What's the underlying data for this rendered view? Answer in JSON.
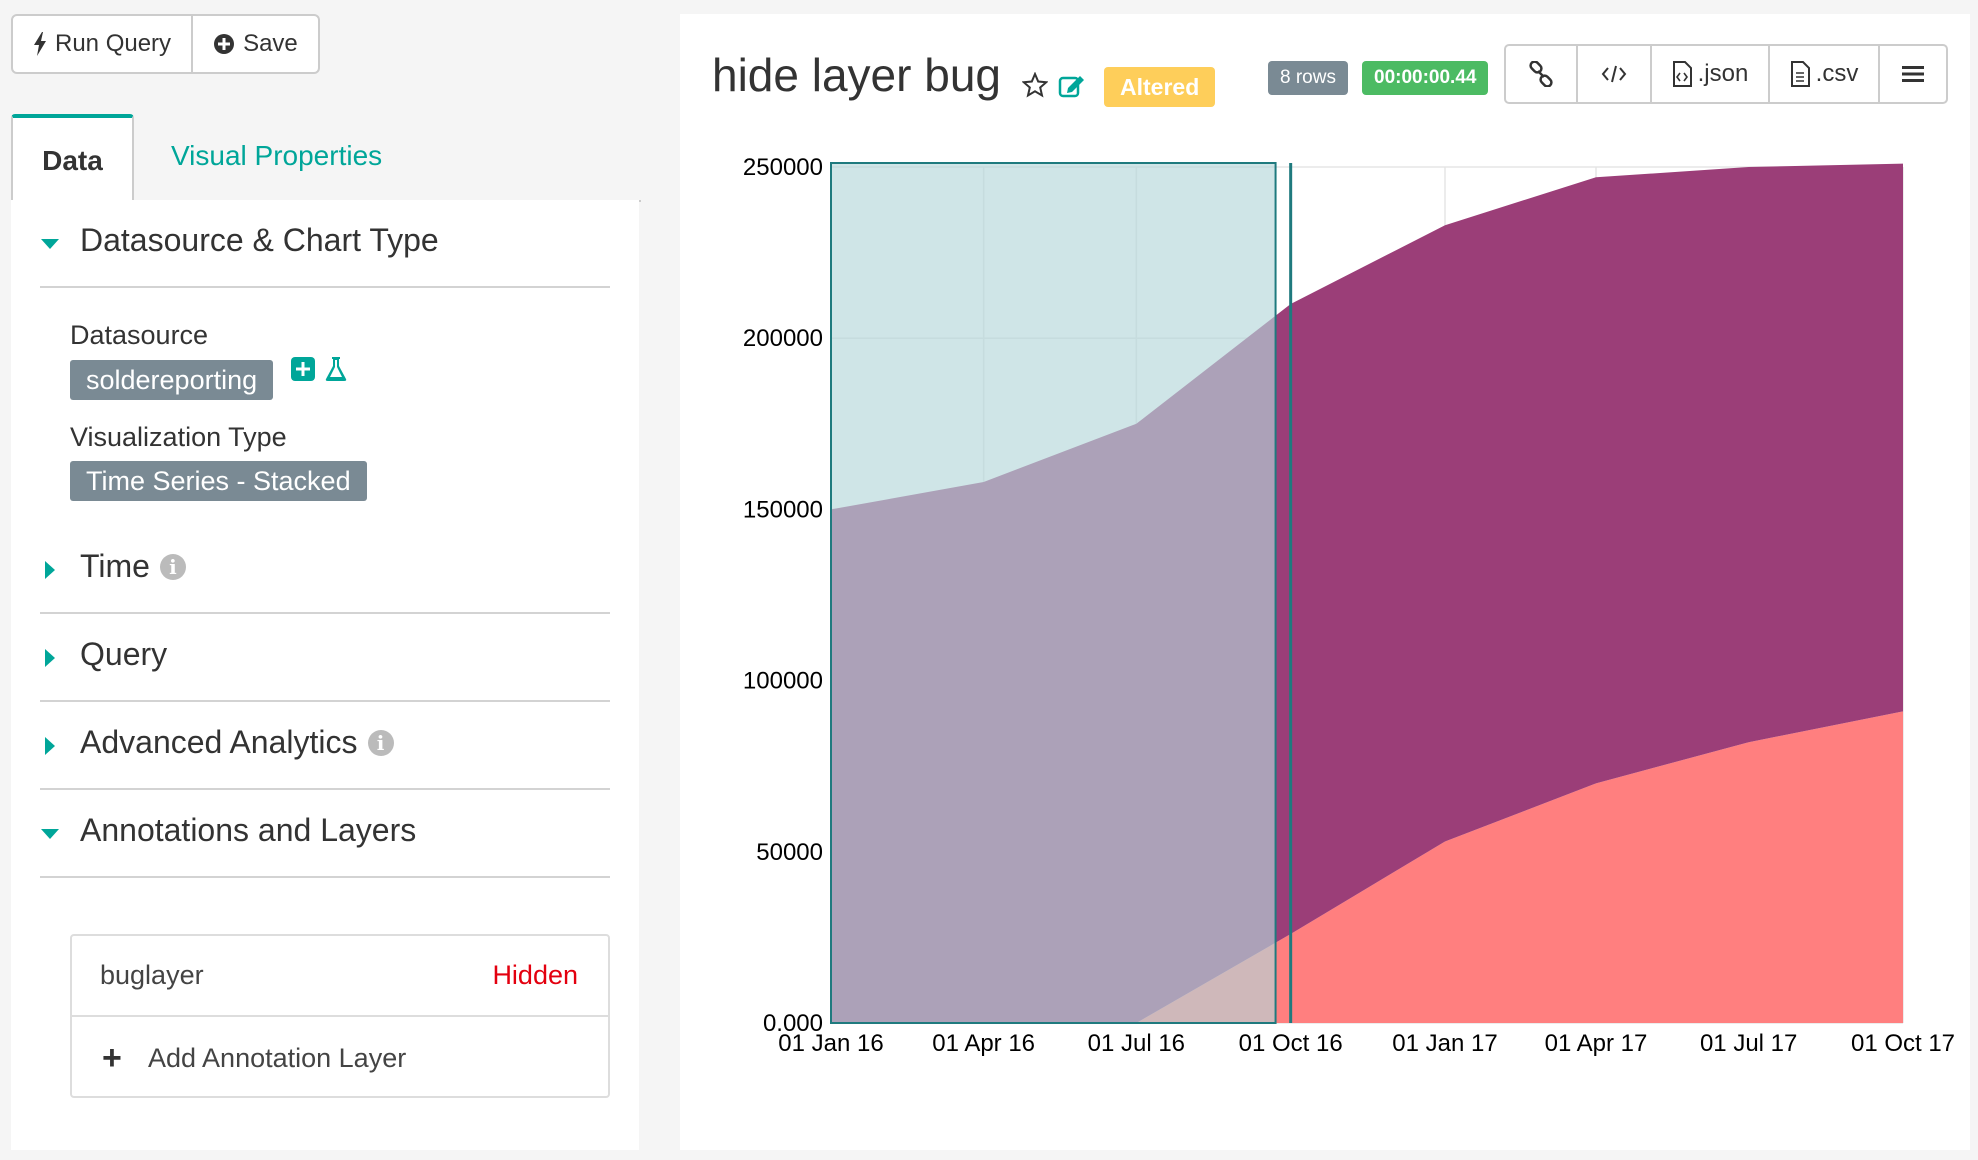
{
  "toolbar": {
    "run_query": "Run Query",
    "save": "Save"
  },
  "tabs": {
    "data": "Data",
    "visual_properties": "Visual Properties"
  },
  "sections": {
    "datasource_chart_type": "Datasource & Chart Type",
    "datasource_label": "Datasource",
    "datasource_value": "soldereporting",
    "viz_type_label": "Visualization Type",
    "viz_type_value": "Time Series - Stacked",
    "time": "Time",
    "query": "Query",
    "advanced_analytics": "Advanced Analytics",
    "annotations_layers": "Annotations and Layers"
  },
  "annotations": {
    "layer_name": "buglayer",
    "layer_status": "Hidden",
    "add_label": "Add Annotation Layer"
  },
  "header": {
    "title": "hide layer bug",
    "altered": "Altered",
    "rows": "8 rows",
    "timer": "00:00:00.44",
    "json": ".json",
    "csv": ".csv"
  },
  "colors": {
    "accent": "#00a699",
    "series_top": "#9b3e78",
    "series_bottom": "#ff7f7f",
    "annotation_fill": "#b6d7da",
    "annotation_line": "#1f7a7e"
  },
  "chart_data": {
    "type": "area",
    "stacked": true,
    "x": [
      "2016-01-01",
      "2016-04-01",
      "2016-07-01",
      "2016-10-01",
      "2017-01-01",
      "2017-04-01",
      "2017-07-01",
      "2017-10-01"
    ],
    "x_tick_labels": [
      "01 Jan 16",
      "01 Apr 16",
      "01 Jul 16",
      "01 Oct 16",
      "01 Jan 17",
      "01 Apr 17",
      "01 Jul 17",
      "01 Oct 17"
    ],
    "y_tick_labels": [
      "0.000",
      "50000",
      "100000",
      "150000",
      "200000",
      "250000"
    ],
    "ylim": [
      0,
      250000
    ],
    "series": [
      {
        "values": [
          0,
          0,
          0,
          26000,
          53000,
          70000,
          82000,
          91000
        ]
      },
      {
        "values": [
          150000,
          158000,
          175000,
          184000,
          180000,
          177000,
          168000,
          160000
        ]
      }
    ],
    "annotations": {
      "interval": {
        "start": "2016-01-01",
        "end": "2016-09-22"
      },
      "event": "2016-10-01"
    },
    "grid": true,
    "legend": "none"
  }
}
